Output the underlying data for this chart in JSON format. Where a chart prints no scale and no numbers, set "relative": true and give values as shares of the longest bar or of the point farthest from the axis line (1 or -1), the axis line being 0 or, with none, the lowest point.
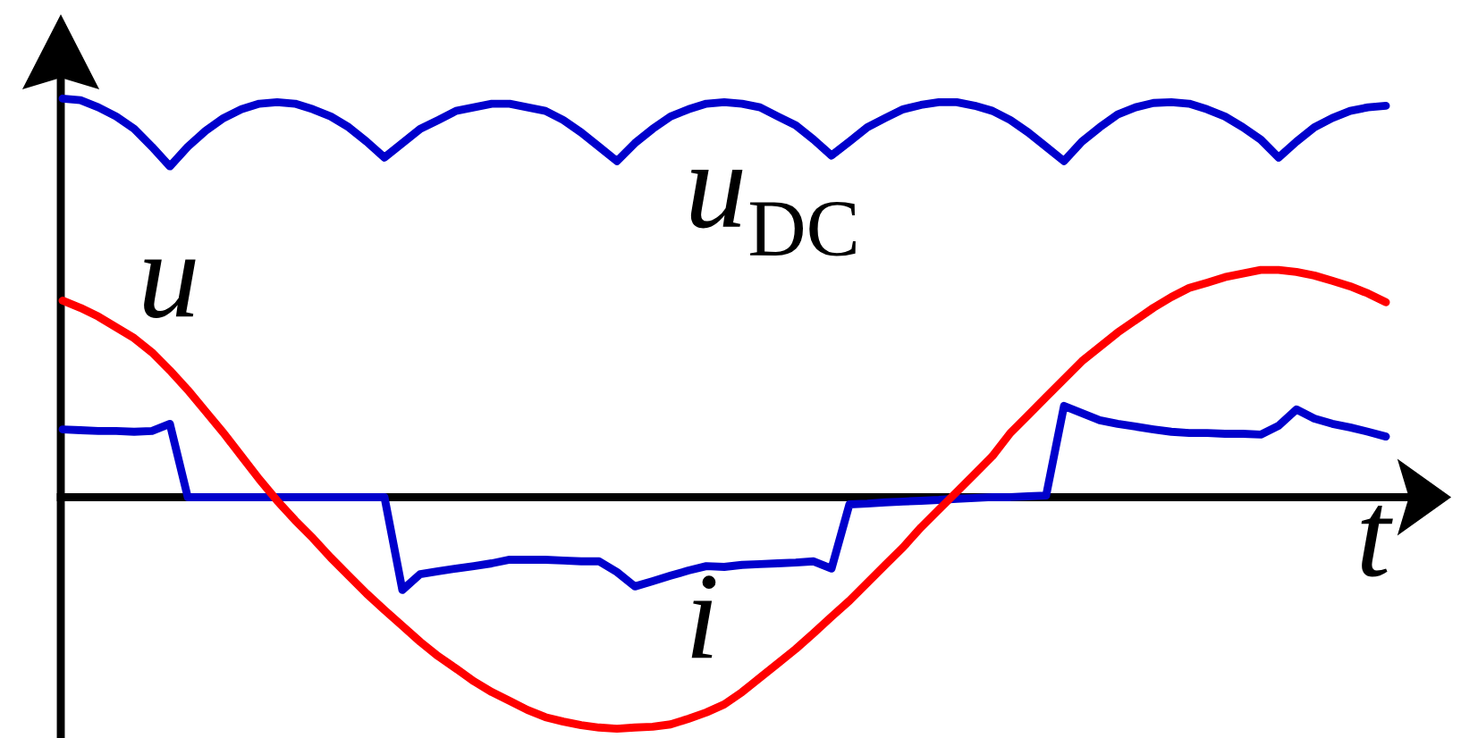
{
  "chart_data": {
    "type": "line",
    "relative": true,
    "xlabel": "t",
    "categories": [
      null,
      null,
      null,
      null,
      null,
      null,
      null,
      null,
      null,
      null,
      null,
      null,
      null,
      null,
      null,
      null,
      null,
      null,
      null,
      null,
      null,
      null,
      null,
      null,
      null,
      null,
      null,
      null,
      null,
      null,
      null,
      null,
      null,
      null,
      null,
      null,
      null,
      null,
      null,
      null,
      null,
      null,
      null,
      null,
      null,
      null,
      null,
      null,
      null,
      null,
      null,
      null,
      null,
      null,
      null,
      null,
      null,
      null,
      null,
      null,
      null,
      null,
      null,
      null,
      null,
      null,
      null,
      null,
      null,
      null,
      null,
      null,
      null,
      null,
      null
    ],
    "series": [
      {
        "name": "u$_{DC}$",
        "color": "#0000cc",
        "values": [
          1.0,
          0.996,
          0.978,
          0.955,
          0.924,
          0.879,
          0.83,
          0.879,
          0.919,
          0.951,
          0.973,
          0.987,
          0.991,
          0.987,
          0.973,
          0.955,
          0.928,
          0.892,
          0.852,
          0.888,
          0.924,
          0.946,
          0.969,
          0.978,
          0.987,
          0.987,
          0.978,
          0.969,
          0.946,
          0.915,
          0.879,
          0.843,
          0.888,
          0.924,
          0.955,
          0.973,
          0.987,
          0.991,
          0.987,
          0.978,
          0.955,
          0.933,
          0.897,
          0.857,
          0.892,
          0.928,
          0.951,
          0.973,
          0.984,
          0.991,
          0.991,
          0.982,
          0.969,
          0.946,
          0.915,
          0.879,
          0.843,
          0.892,
          0.928,
          0.96,
          0.978,
          0.989,
          0.991,
          0.987,
          0.973,
          0.955,
          0.928,
          0.897,
          0.852,
          0.892,
          0.928,
          0.951,
          0.969,
          0.978,
          0.982
        ]
      },
      {
        "name": "i",
        "color": "#0000cc",
        "values": [
          0.17,
          0.168,
          0.166,
          0.166,
          0.164,
          0.166,
          0.184,
          0,
          0,
          0,
          0,
          0,
          0,
          0,
          0,
          0,
          0,
          0,
          0,
          -0.233,
          -0.193,
          -0.186,
          -0.179,
          -0.173,
          -0.166,
          -0.157,
          -0.157,
          -0.157,
          -0.159,
          -0.161,
          -0.161,
          -0.188,
          -0.224,
          -0.211,
          -0.197,
          -0.184,
          -0.173,
          -0.175,
          -0.17,
          -0.168,
          -0.166,
          -0.164,
          -0.161,
          -0.179,
          -0.018,
          -0.016,
          -0.013,
          -0.011,
          -0.009,
          -0.007,
          -0.004,
          -0.002,
          0,
          0,
          0.002,
          0.004,
          0.229,
          0.211,
          0.193,
          0.184,
          0.177,
          0.17,
          0.164,
          0.161,
          0.161,
          0.159,
          0.159,
          0.157,
          0.179,
          0.22,
          0.197,
          0.184,
          0.175,
          0.164,
          0.152
        ]
      },
      {
        "name": "u",
        "color": "#ff0000",
        "values": [
          0.493,
          0.475,
          0.453,
          0.426,
          0.399,
          0.363,
          0.318,
          0.269,
          0.215,
          0.161,
          0.103,
          0.045,
          -0.009,
          -0.058,
          -0.103,
          -0.152,
          -0.197,
          -0.242,
          -0.283,
          -0.323,
          -0.363,
          -0.399,
          -0.43,
          -0.462,
          -0.489,
          -0.511,
          -0.534,
          -0.552,
          -0.563,
          -0.572,
          -0.578,
          -0.581,
          -0.578,
          -0.576,
          -0.57,
          -0.556,
          -0.54,
          -0.52,
          -0.489,
          -0.453,
          -0.417,
          -0.381,
          -0.341,
          -0.3,
          -0.26,
          -0.215,
          -0.17,
          -0.126,
          -0.076,
          -0.031,
          0.013,
          0.058,
          0.103,
          0.161,
          0.206,
          0.251,
          0.296,
          0.341,
          0.377,
          0.413,
          0.444,
          0.475,
          0.502,
          0.525,
          0.538,
          0.552,
          0.561,
          0.57,
          0.57,
          0.565,
          0.556,
          0.543,
          0.529,
          0.511,
          0.489
        ]
      }
    ]
  }
}
